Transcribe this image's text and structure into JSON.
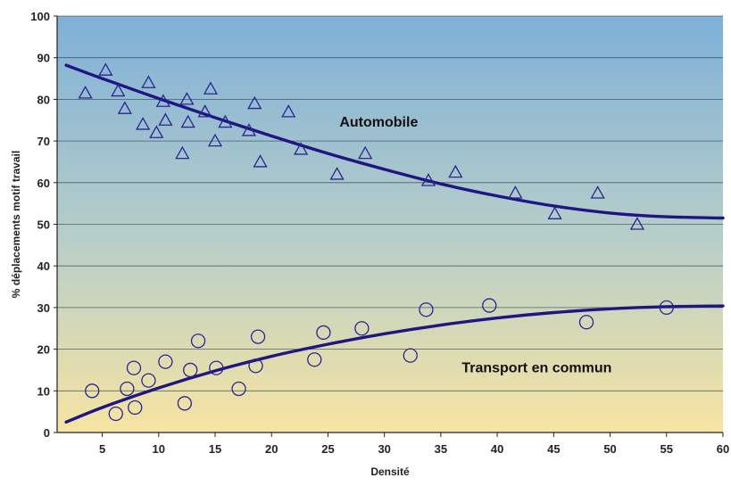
{
  "chart_data": {
    "type": "scatter",
    "title": "",
    "xlabel": "Densité",
    "ylabel": "% déplacements motif travail",
    "xlim": [
      1,
      60
    ],
    "ylim": [
      0,
      100
    ],
    "x_ticks": [
      5,
      10,
      15,
      20,
      25,
      30,
      35,
      40,
      45,
      50,
      55,
      60
    ],
    "y_ticks": [
      0,
      10,
      20,
      30,
      40,
      50,
      60,
      70,
      80,
      90,
      100
    ],
    "grid": "horizontal",
    "background_gradient": {
      "top": "#7fb0d8",
      "middle": "#b9cfc8",
      "bottom": "#f7e4a2"
    },
    "curve_color": "#1f1682",
    "marker_color": "#2a2490",
    "series": [
      {
        "name": "Automobile",
        "marker": "triangle",
        "points": [
          [
            3.5,
            81.5
          ],
          [
            5.3,
            87
          ],
          [
            6.4,
            82
          ],
          [
            7,
            77.8
          ],
          [
            8.6,
            74
          ],
          [
            9.1,
            84
          ],
          [
            9.8,
            72
          ],
          [
            10.4,
            79.5
          ],
          [
            10.6,
            75
          ],
          [
            12.1,
            67
          ],
          [
            12.5,
            80
          ],
          [
            12.6,
            74.5
          ],
          [
            14.1,
            77
          ],
          [
            14.6,
            82.5
          ],
          [
            15,
            70
          ],
          [
            15.9,
            74.5
          ],
          [
            18,
            72.5
          ],
          [
            18.5,
            79
          ],
          [
            19,
            65
          ],
          [
            21.5,
            77
          ],
          [
            22.6,
            68
          ],
          [
            25.8,
            62
          ],
          [
            28.3,
            67
          ],
          [
            33.9,
            60.5
          ],
          [
            36.3,
            62.5
          ],
          [
            41.6,
            57.5
          ],
          [
            45.1,
            52.5
          ],
          [
            48.9,
            57.5
          ],
          [
            52.4,
            50
          ]
        ],
        "trend": [
          [
            1.8,
            88.2
          ],
          [
            5,
            85
          ],
          [
            10,
            80.2
          ],
          [
            15,
            75.6
          ],
          [
            20,
            71.2
          ],
          [
            25,
            67
          ],
          [
            30,
            63.2
          ],
          [
            35,
            59.7
          ],
          [
            40,
            56.8
          ],
          [
            45,
            54.4
          ],
          [
            50,
            52.7
          ],
          [
            55,
            51.8
          ],
          [
            60,
            51.5
          ]
        ]
      },
      {
        "name": "Transport en commun",
        "marker": "circle",
        "points": [
          [
            4.1,
            10
          ],
          [
            6.2,
            4.5
          ],
          [
            7.2,
            10.5
          ],
          [
            7.8,
            15.5
          ],
          [
            7.9,
            6
          ],
          [
            9.1,
            12.5
          ],
          [
            10.6,
            17
          ],
          [
            12.3,
            7
          ],
          [
            12.8,
            15
          ],
          [
            13.5,
            22
          ],
          [
            15.1,
            15.5
          ],
          [
            17.1,
            10.5
          ],
          [
            18.6,
            16
          ],
          [
            18.8,
            23
          ],
          [
            23.8,
            17.5
          ],
          [
            24.6,
            24
          ],
          [
            28,
            25
          ],
          [
            32.3,
            18.5
          ],
          [
            33.7,
            29.5
          ],
          [
            39.3,
            30.5
          ],
          [
            47.9,
            26.5
          ],
          [
            55,
            30
          ]
        ],
        "trend": [
          [
            1.8,
            2.5
          ],
          [
            5,
            6
          ],
          [
            10,
            10.7
          ],
          [
            15,
            14.8
          ],
          [
            20,
            18.3
          ],
          [
            25,
            21.2
          ],
          [
            30,
            23.7
          ],
          [
            35,
            25.8
          ],
          [
            40,
            27.5
          ],
          [
            45,
            28.8
          ],
          [
            50,
            29.7
          ],
          [
            55,
            30.2
          ],
          [
            60,
            30.4
          ]
        ]
      }
    ]
  }
}
